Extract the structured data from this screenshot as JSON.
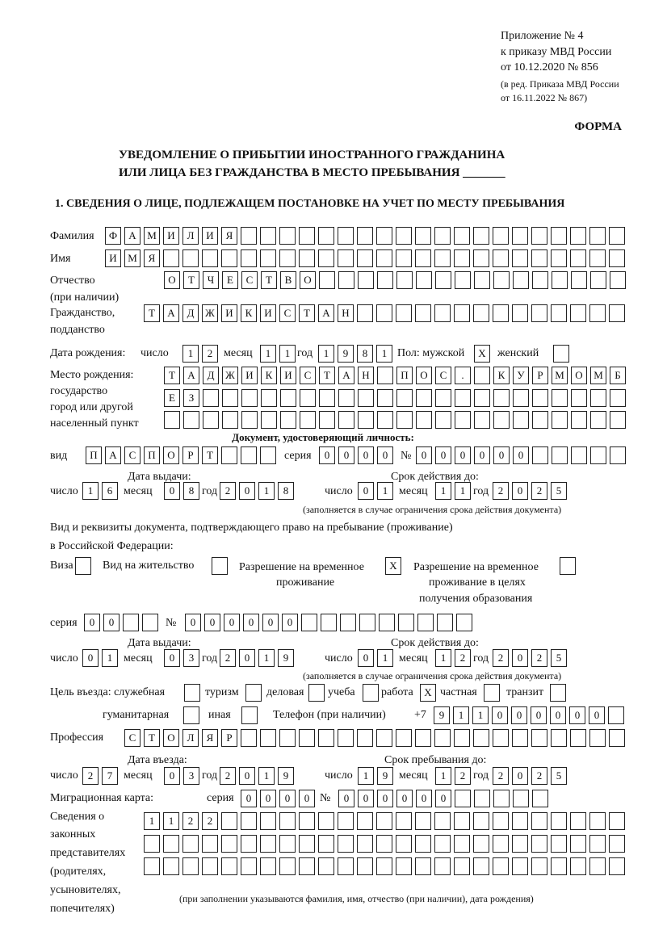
{
  "header": {
    "appendix": [
      "Приложение № 4",
      "к приказу МВД России",
      "от 10.12.2020 № 856",
      "(в ред. Приказа МВД России",
      "от 16.11.2022 № 867)"
    ],
    "form_label": "ФОРМА",
    "title_line1": "УВЕДОМЛЕНИЕ О ПРИБЫТИИ ИНОСТРАННОГО ГРАЖДАНИНА",
    "title_line2": "ИЛИ ЛИЦА БЕЗ ГРАЖДАНСТВА В МЕСТО ПРЕБЫВАНИЯ",
    "title_blank": "_______",
    "section1": "1. СВЕДЕНИЯ О ЛИЦЕ, ПОДЛЕЖАЩЕМ ПОСТАНОВКЕ НА УЧЕТ ПО МЕСТУ ПРЕБЫВАНИЯ"
  },
  "person": {
    "surname_label": "Фамилия",
    "surname": [
      "Ф",
      "А",
      "М",
      "И",
      "Л",
      "И",
      "Я",
      "",
      "",
      "",
      "",
      "",
      "",
      "",
      "",
      "",
      "",
      "",
      "",
      "",
      "",
      "",
      "",
      "",
      "",
      "",
      ""
    ],
    "name_label": "Имя",
    "name": [
      "И",
      "М",
      "Я",
      "",
      "",
      "",
      "",
      "",
      "",
      "",
      "",
      "",
      "",
      "",
      "",
      "",
      "",
      "",
      "",
      "",
      "",
      "",
      "",
      "",
      "",
      "",
      ""
    ],
    "patronymic_label": "Отчество",
    "patronymic_label2": "(при наличии)",
    "patronymic": [
      "О",
      "Т",
      "Ч",
      "Е",
      "С",
      "Т",
      "В",
      "О",
      "",
      "",
      "",
      "",
      "",
      "",
      "",
      "",
      "",
      "",
      "",
      "",
      "",
      "",
      "",
      ""
    ],
    "citizenship_label": "Гражданство,",
    "citizenship_label2": "подданство",
    "citizenship": [
      "Т",
      "А",
      "Д",
      "Ж",
      "И",
      "К",
      "И",
      "С",
      "Т",
      "А",
      "Н",
      "",
      "",
      "",
      "",
      "",
      "",
      "",
      "",
      "",
      "",
      "",
      "",
      "",
      ""
    ],
    "birth": {
      "label": "Дата рождения:",
      "day_label": "число",
      "day": [
        "1",
        "2"
      ],
      "month_label": "месяц",
      "month": [
        "1",
        "1"
      ],
      "year_label": "год",
      "year": [
        "1",
        "9",
        "8",
        "1"
      ]
    },
    "sex_label": "Пол: мужской",
    "male": [
      "X"
    ],
    "female_label": "женский",
    "female": [
      ""
    ],
    "birthplace_labels": [
      "Место рождения:",
      "государство",
      "город или другой",
      "населенный пункт"
    ],
    "birthplace_row1": [
      "Т",
      "А",
      "Д",
      "Ж",
      "И",
      "К",
      "И",
      "С",
      "Т",
      "А",
      "Н",
      "",
      "П",
      "О",
      "С",
      ".",
      "",
      "К",
      "У",
      "Р",
      "М",
      "О",
      "М",
      "Б"
    ],
    "birthplace_row2": [
      "Е",
      "З",
      "",
      "",
      "",
      "",
      "",
      "",
      "",
      "",
      "",
      "",
      "",
      "",
      "",
      "",
      "",
      "",
      "",
      "",
      "",
      "",
      "",
      ""
    ],
    "birthplace_row3": [
      "",
      "",
      "",
      "",
      "",
      "",
      "",
      "",
      "",
      "",
      "",
      "",
      "",
      "",
      "",
      "",
      "",
      "",
      "",
      "",
      "",
      "",
      "",
      ""
    ]
  },
  "id_doc": {
    "heading": "Документ, удостоверяющий личность:",
    "type_label": "вид",
    "type": [
      "П",
      "А",
      "С",
      "П",
      "О",
      "Р",
      "Т",
      "",
      "",
      ""
    ],
    "series_label": "серия",
    "series": [
      "0",
      "0",
      "0",
      "0"
    ],
    "number_label": "№",
    "number": [
      "0",
      "0",
      "0",
      "0",
      "0",
      "0",
      "",
      "",
      "",
      "",
      ""
    ],
    "issue_label": "Дата выдачи:",
    "valid_label": "Срок действия до:",
    "day_label": "число",
    "month_label": "месяц",
    "year_label": "год",
    "issue_day": [
      "1",
      "6"
    ],
    "issue_month": [
      "0",
      "8"
    ],
    "issue_year": [
      "2",
      "0",
      "1",
      "8"
    ],
    "valid_day": [
      "0",
      "1"
    ],
    "valid_month": [
      "1",
      "1"
    ],
    "valid_year": [
      "2",
      "0",
      "2",
      "5"
    ],
    "note": "(заполняется в случае ограничения срока действия документа)"
  },
  "permit": {
    "line1": "Вид и реквизиты документа, подтверждающего право на пребывание (проживание)",
    "line2": "в Российской Федерации:",
    "visa_label": "Виза",
    "visa": [
      ""
    ],
    "residence_label": "Вид на жительство",
    "residence": [
      ""
    ],
    "temp_label1": "Разрешение на временное",
    "temp_label2": "проживание",
    "temp": [
      "X"
    ],
    "edu_label1": "Разрешение на временное",
    "edu_label2": "проживание в целях",
    "edu_label3": "получения образования",
    "edu": [
      ""
    ],
    "series_label": "серия",
    "series": [
      "0",
      "0",
      "",
      ""
    ],
    "number_label": "№",
    "number": [
      "0",
      "0",
      "0",
      "0",
      "0",
      "0",
      "",
      "",
      "",
      "",
      "",
      "",
      "",
      "",
      ""
    ],
    "issue_label": "Дата выдачи:",
    "valid_label": "Срок действия до:",
    "day_label": "число",
    "month_label": "месяц",
    "year_label": "год",
    "issue_day": [
      "0",
      "1"
    ],
    "issue_month": [
      "0",
      "3"
    ],
    "issue_year": [
      "2",
      "0",
      "1",
      "9"
    ],
    "valid_day": [
      "0",
      "1"
    ],
    "valid_month": [
      "1",
      "2"
    ],
    "valid_year": [
      "2",
      "0",
      "2",
      "5"
    ],
    "note": "(заполняется в случае ограничения срока действия документа)"
  },
  "purpose": {
    "label": "Цель въезда: служебная",
    "official": [
      ""
    ],
    "tourism_label": "туризм",
    "tourism": [
      ""
    ],
    "business_label": "деловая",
    "business": [
      ""
    ],
    "study_label": "учеба",
    "study": [
      ""
    ],
    "work_label": "работа",
    "work": [
      "X"
    ],
    "private_label": "частная",
    "private": [
      ""
    ],
    "transit_label": "транзит",
    "transit": [
      ""
    ],
    "humanitarian_label": "гуманитарная",
    "humanitarian": [
      ""
    ],
    "other_label": "иная",
    "other": [
      ""
    ]
  },
  "phone": {
    "label": "Телефон (при наличии)",
    "prefix": "+7",
    "digits": [
      "9",
      "1",
      "1",
      "0",
      "0",
      "0",
      "0",
      "0",
      "0",
      ""
    ]
  },
  "profession": {
    "label": "Профессия",
    "value": [
      "С",
      "Т",
      "О",
      "Л",
      "Я",
      "Р",
      "",
      "",
      "",
      "",
      "",
      "",
      "",
      "",
      "",
      "",
      "",
      "",
      "",
      "",
      "",
      "",
      "",
      "",
      "",
      ""
    ]
  },
  "entry": {
    "entry_label": "Дата въезда:",
    "stay_label": "Срок пребывания до:",
    "day_label": "число",
    "month_label": "месяц",
    "year_label": "год",
    "entry_day": [
      "2",
      "7"
    ],
    "entry_month": [
      "0",
      "3"
    ],
    "entry_year": [
      "2",
      "0",
      "1",
      "9"
    ],
    "stay_day": [
      "1",
      "9"
    ],
    "stay_month": [
      "1",
      "2"
    ],
    "stay_year": [
      "2",
      "0",
      "2",
      "5"
    ]
  },
  "migration_card": {
    "label": "Миграционная карта:",
    "series_label": "серия",
    "series": [
      "0",
      "0",
      "0",
      "0"
    ],
    "number_label": "№",
    "number": [
      "0",
      "0",
      "0",
      "0",
      "0",
      "0",
      "",
      "",
      "",
      "",
      ""
    ]
  },
  "representatives": {
    "labels": [
      "Сведения о",
      "законных",
      "представителях",
      "(родителях,",
      "усыновителях,",
      "попечителях)"
    ],
    "row1": [
      "1",
      "1",
      "2",
      "2",
      "",
      "",
      "",
      "",
      "",
      "",
      "",
      "",
      "",
      "",
      "",
      "",
      "",
      "",
      "",
      "",
      "",
      "",
      "",
      "",
      ""
    ],
    "row2": [
      "",
      "",
      "",
      "",
      "",
      "",
      "",
      "",
      "",
      "",
      "",
      "",
      "",
      "",
      "",
      "",
      "",
      "",
      "",
      "",
      "",
      "",
      "",
      "",
      ""
    ],
    "row3": [
      "",
      "",
      "",
      "",
      "",
      "",
      "",
      "",
      "",
      "",
      "",
      "",
      "",
      "",
      "",
      "",
      "",
      "",
      "",
      "",
      "",
      "",
      "",
      "",
      ""
    ],
    "note": "(при заполнении указываются фамилия, имя, отчество (при наличии), дата рождения)"
  }
}
